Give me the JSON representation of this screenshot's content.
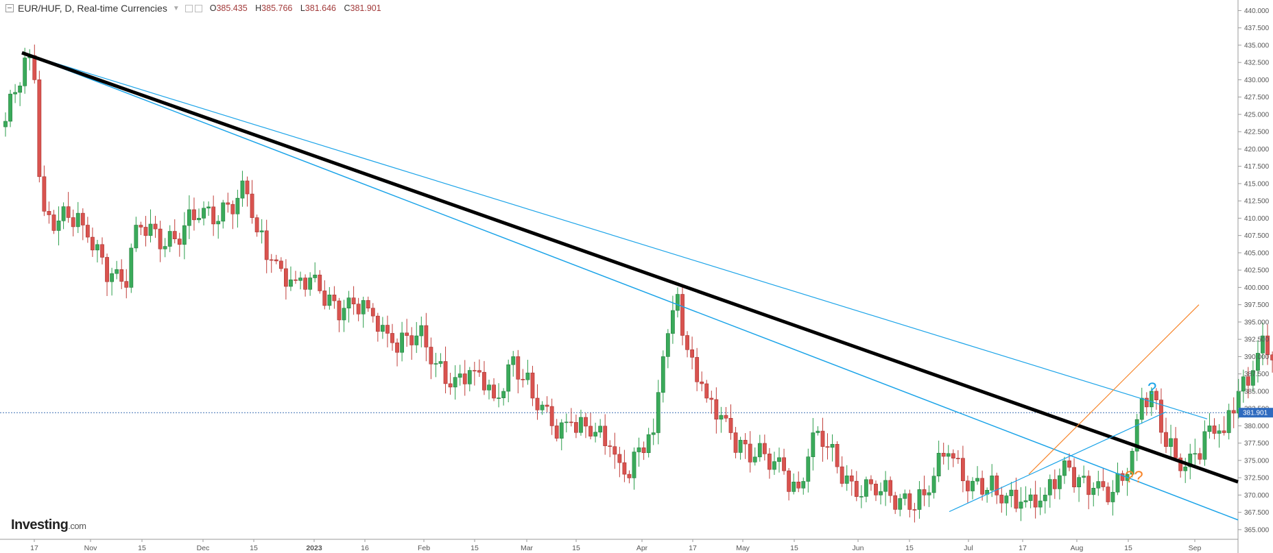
{
  "header": {
    "symbol": "EUR/HUF, D, Real-time Currencies",
    "ohlc": {
      "o_label": "O",
      "o": "385.435",
      "h_label": "H",
      "h": "385.766",
      "l_label": "L",
      "l": "381.646",
      "c_label": "C",
      "c": "381.901"
    }
  },
  "brand": {
    "name": "Investing",
    "domain": ".com"
  },
  "colors": {
    "up": "#26a69a",
    "down": "#ef5350",
    "up_body": "#3aaa5a",
    "down_body": "#d9534f",
    "trend_black": "#000000",
    "trend_blue": "#1aa3e8",
    "trend_orange": "#f7852a"
  },
  "chart_data": {
    "type": "candlestick",
    "title": "EUR/HUF, D, Real-time Currencies",
    "ylim": [
      364,
      441
    ],
    "y_ticks": [
      "440.000",
      "437.500",
      "435.000",
      "432.500",
      "430.000",
      "427.500",
      "425.000",
      "422.500",
      "420.000",
      "417.500",
      "415.000",
      "412.500",
      "410.000",
      "407.500",
      "405.000",
      "402.500",
      "400.000",
      "397.500",
      "395.000",
      "392.500",
      "390.000",
      "387.500",
      "385.000",
      "382.500",
      "380.000",
      "377.500",
      "375.000",
      "372.500",
      "370.000",
      "367.500",
      "365.000"
    ],
    "x_ticks": [
      "17",
      "Nov",
      "15",
      "Dec",
      "15",
      "2023",
      "16",
      "Feb",
      "15",
      "Mar",
      "15",
      "Apr",
      "17",
      "May",
      "15",
      "Jun",
      "15",
      "Jul",
      "17",
      "Aug",
      "15",
      "Sep"
    ],
    "last_price": "381.901",
    "annotations": [
      {
        "text": "?",
        "color": "#1aa3e8"
      },
      {
        "text": "??",
        "color": "#f7852a"
      }
    ],
    "waypoints": [
      [
        0,
        424
      ],
      [
        5,
        433.5
      ],
      [
        6,
        430
      ],
      [
        7,
        416
      ],
      [
        8,
        411
      ],
      [
        16,
        409
      ],
      [
        22,
        402
      ],
      [
        25,
        400
      ],
      [
        27,
        409
      ],
      [
        35,
        407
      ],
      [
        40,
        410
      ],
      [
        46,
        412
      ],
      [
        50,
        413.5
      ],
      [
        52,
        408
      ],
      [
        55,
        404
      ],
      [
        60,
        401
      ],
      [
        65,
        399.5
      ],
      [
        70,
        397
      ],
      [
        75,
        397
      ],
      [
        80,
        392
      ],
      [
        85,
        393
      ],
      [
        89,
        389
      ],
      [
        93,
        387
      ],
      [
        97,
        388
      ],
      [
        101,
        384
      ],
      [
        105,
        390
      ],
      [
        109,
        384
      ],
      [
        113,
        380
      ],
      [
        117,
        380.5
      ],
      [
        121,
        378.5
      ],
      [
        125,
        377
      ],
      [
        128,
        373
      ],
      [
        134,
        379
      ],
      [
        136,
        390
      ],
      [
        139,
        399
      ],
      [
        141,
        391
      ],
      [
        145,
        384
      ],
      [
        150,
        379
      ],
      [
        155,
        375.5
      ],
      [
        161,
        373.5
      ],
      [
        164,
        371
      ],
      [
        167,
        379
      ],
      [
        169,
        377
      ],
      [
        175,
        372
      ],
      [
        180,
        370
      ],
      [
        185,
        369.5
      ],
      [
        190,
        370
      ],
      [
        195,
        376
      ],
      [
        200,
        372
      ],
      [
        205,
        370
      ],
      [
        210,
        369
      ],
      [
        215,
        370
      ],
      [
        220,
        374
      ],
      [
        225,
        371
      ],
      [
        228,
        369
      ],
      [
        232,
        373
      ],
      [
        235,
        384
      ],
      [
        237,
        385
      ],
      [
        240,
        377
      ],
      [
        243,
        373.5
      ],
      [
        246,
        376
      ],
      [
        249,
        380
      ],
      [
        252,
        379
      ],
      [
        255,
        385
      ],
      [
        258,
        388
      ],
      [
        260,
        393
      ],
      [
        262,
        389.5
      ],
      [
        264,
        389
      ],
      [
        266,
        386
      ],
      [
        267,
        381.9
      ]
    ]
  }
}
